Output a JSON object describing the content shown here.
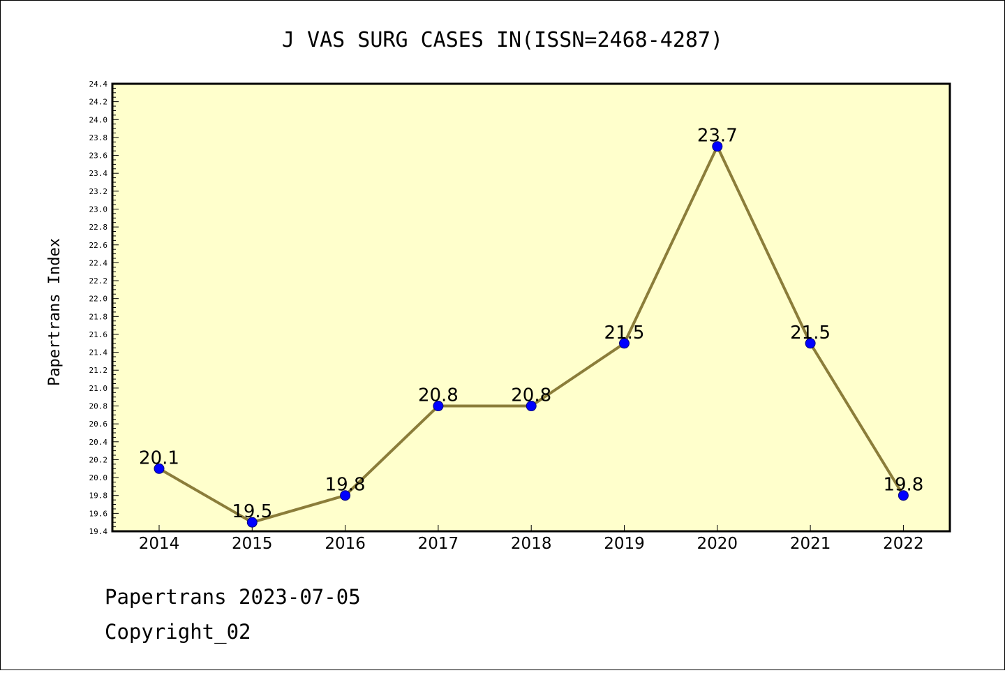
{
  "chart_data": {
    "type": "line",
    "title": "J VAS SURG CASES IN(ISSN=2468-4287)",
    "ylabel": "Papertrans Index",
    "xlabel": "",
    "categories": [
      "2014",
      "2015",
      "2016",
      "2017",
      "2018",
      "2019",
      "2020",
      "2021",
      "2022"
    ],
    "values": [
      20.1,
      19.5,
      19.8,
      20.8,
      20.8,
      21.5,
      23.7,
      21.5,
      19.8
    ],
    "data_labels": [
      "20.1",
      "19.5",
      "19.8",
      "20.8",
      "20.8",
      "21.5",
      "23.7",
      "21.5",
      "19.8"
    ],
    "ylim": [
      19.4,
      24.4
    ],
    "yticks": [
      "19.4",
      "19.6",
      "19.8",
      "20.0",
      "20.2",
      "20.4",
      "20.6",
      "20.8",
      "21.0",
      "21.2",
      "21.4",
      "21.6",
      "21.8",
      "22.0",
      "22.2",
      "22.4",
      "22.6",
      "22.8",
      "23.0",
      "23.2",
      "23.4",
      "23.6",
      "23.8",
      "24.0",
      "24.2",
      "24.4"
    ],
    "line_color": "#8b7d3a",
    "marker_color": "#0000ff",
    "plot_background": "#ffffcc",
    "grid": false
  },
  "footer": {
    "line1": "Papertrans 2023-07-05",
    "line2": "Copyright_02"
  }
}
